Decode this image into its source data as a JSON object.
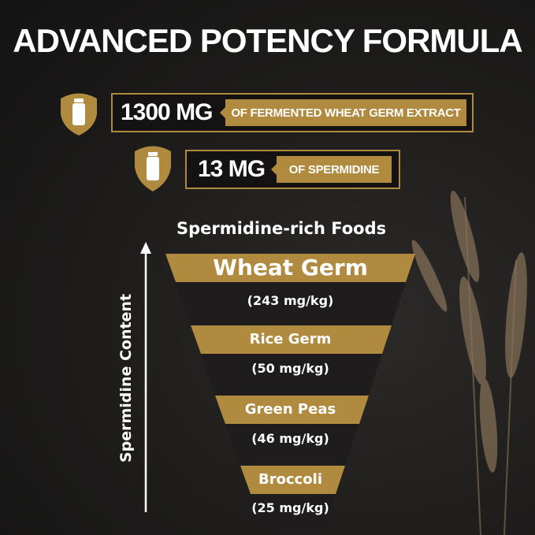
{
  "title": "ADVANCED POTENCY FORMULA",
  "highlights": [
    {
      "amount": "1300 MG",
      "label": "OF FERMENTED WHEAT GERM EXTRACT",
      "icon": "bottle-shield-icon"
    },
    {
      "amount": "13 MG",
      "label": "OF SPERMIDINE",
      "icon": "bottle-shield-icon"
    }
  ],
  "funnel": {
    "title": "Spermidine-rich Foods",
    "axis_label": "Spermidine Content",
    "items": [
      {
        "name": "Wheat Germ",
        "value": "(243 mg/kg)"
      },
      {
        "name": "Rice Germ",
        "value": "(50 mg/kg)"
      },
      {
        "name": "Green Peas",
        "value": "(46 mg/kg)"
      },
      {
        "name": "Broccoli",
        "value": "(25 mg/kg)"
      }
    ]
  },
  "colors": {
    "gold": "#b08a3e",
    "background": "#1d1c1b",
    "funnel": "#1e1c1c"
  }
}
